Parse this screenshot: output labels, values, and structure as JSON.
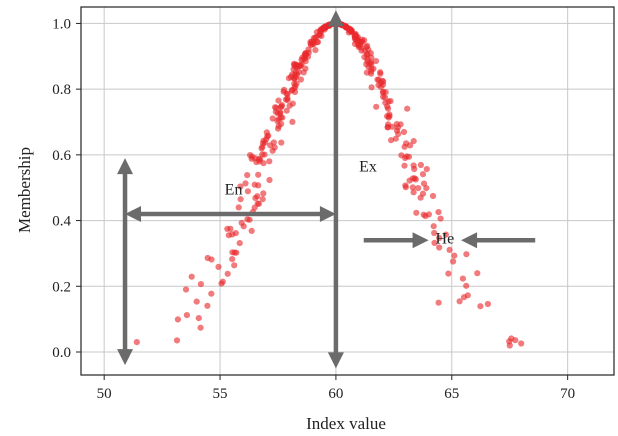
{
  "chart_data": {
    "type": "scatter",
    "title": "",
    "xlabel": "Index value",
    "ylabel": "Membership",
    "xlim": [
      49,
      72
    ],
    "ylim": [
      -0.07,
      1.05
    ],
    "xticks": [
      50,
      55,
      60,
      65,
      70
    ],
    "yticks": [
      0.0,
      0.2,
      0.4,
      0.6,
      0.8,
      1.0
    ],
    "xtick_labels": [
      "50",
      "55",
      "60",
      "65",
      "70"
    ],
    "ytick_labels": [
      "0.0",
      "0.2",
      "0.4",
      "0.6",
      "0.8",
      "1.0"
    ],
    "grid": true,
    "point_color": "#e8282b",
    "model": {
      "Ex": 60,
      "En": 3,
      "He": 0.3,
      "n": 400
    },
    "annotations": [
      {
        "text": "Ex",
        "at": [
          61,
          0.55
        ]
      },
      {
        "text": "En",
        "at": [
          55.2,
          0.48
        ]
      },
      {
        "text": "He",
        "at": [
          64.3,
          0.33
        ]
      }
    ],
    "arrows": [
      {
        "name": "ex-arrow",
        "type": "double",
        "from": [
          60,
          -0.05
        ],
        "to": [
          60,
          1.04
        ]
      },
      {
        "name": "en-arrow",
        "type": "double",
        "from": [
          50.9,
          0.42
        ],
        "to": [
          60,
          0.42
        ]
      },
      {
        "name": "left-vertical-arrow",
        "type": "double",
        "from": [
          50.9,
          -0.04
        ],
        "to": [
          50.9,
          0.59
        ]
      },
      {
        "name": "he-arrow-right",
        "type": "single",
        "from": [
          61.2,
          0.34
        ],
        "to": [
          64,
          0.34
        ]
      },
      {
        "name": "he-arrow-left",
        "type": "single",
        "from": [
          68.6,
          0.34
        ],
        "to": [
          65.4,
          0.34
        ]
      }
    ],
    "arrow_color": "#6b6b6b",
    "grid_color": "#c8c8c8"
  }
}
